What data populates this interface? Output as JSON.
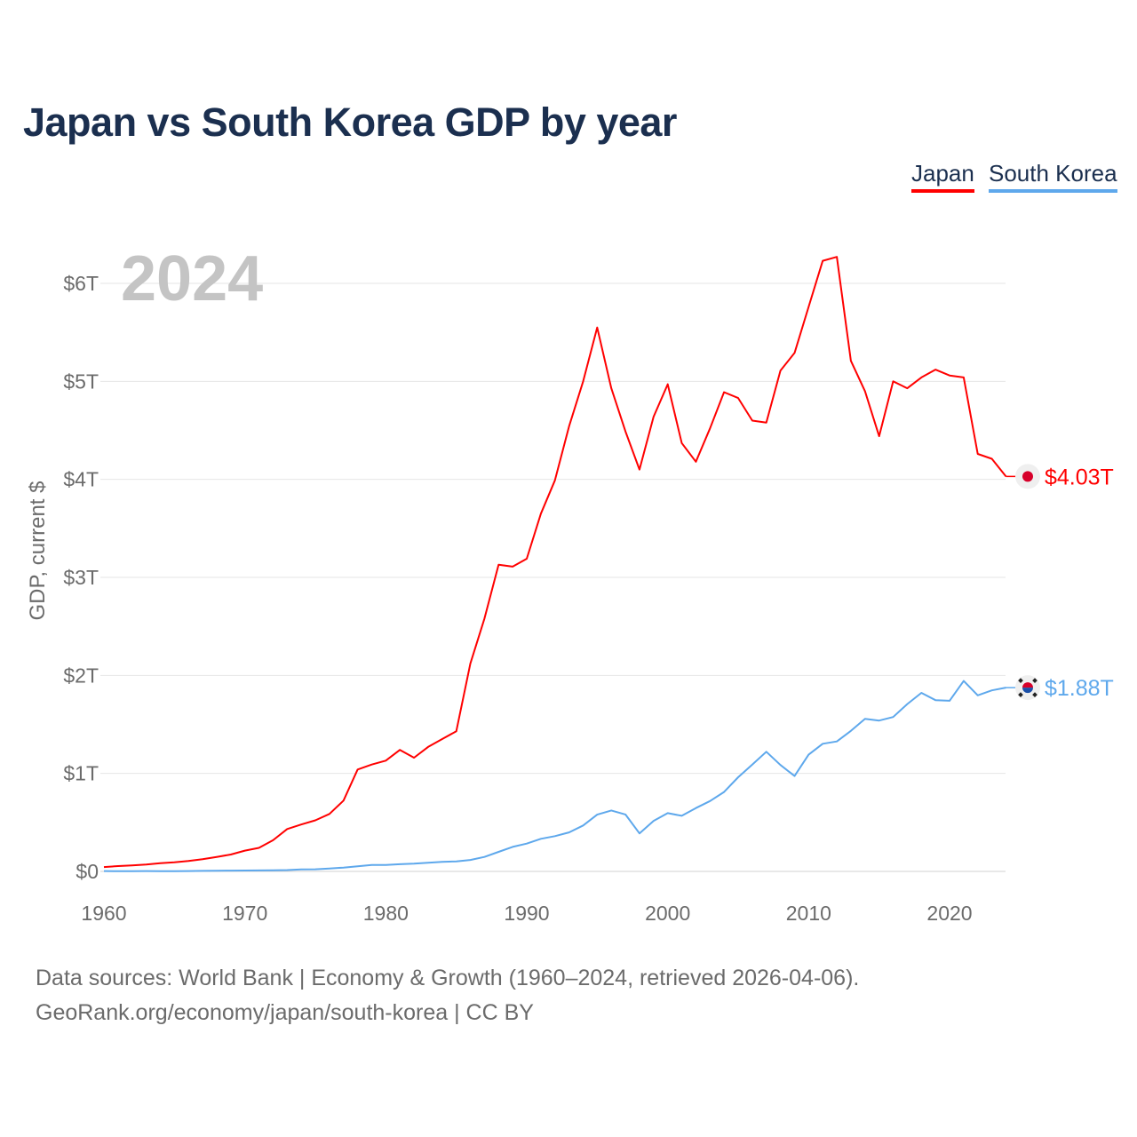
{
  "title": "Japan vs South Korea GDP by year",
  "legend": [
    {
      "label": "Japan",
      "color": "#ff0000"
    },
    {
      "label": "South Korea",
      "color": "#5ea8ec"
    }
  ],
  "year_watermark": "2024",
  "footer": {
    "line1": "Data sources: World Bank | Economy & Growth (1960–2024, retrieved 2026-04-06).",
    "line2": "GeoRank.org/economy/japan/south-korea | CC BY"
  },
  "chart_data": {
    "type": "line",
    "title": "Japan vs South Korea GDP by year",
    "xlabel": "",
    "ylabel": "GDP, current $",
    "xlim": [
      1960,
      2024
    ],
    "ylim": [
      0,
      6.5
    ],
    "y_unit": "trillion USD",
    "x_ticks": [
      "1960",
      "1970",
      "1980",
      "1990",
      "2000",
      "2010",
      "2020"
    ],
    "y_ticks": [
      "$0",
      "$1T",
      "$2T",
      "$3T",
      "$4T",
      "$5T",
      "$6T"
    ],
    "grid": true,
    "legend_position": "top-right",
    "x_start": 1960,
    "series": [
      {
        "name": "Japan",
        "color": "#ff0000",
        "end_label": "$4.03T",
        "values": [
          0.044,
          0.054,
          0.061,
          0.07,
          0.083,
          0.092,
          0.107,
          0.125,
          0.148,
          0.172,
          0.212,
          0.24,
          0.318,
          0.432,
          0.479,
          0.521,
          0.586,
          0.722,
          1.04,
          1.09,
          1.13,
          1.24,
          1.16,
          1.27,
          1.35,
          1.43,
          2.12,
          2.58,
          3.13,
          3.11,
          3.19,
          3.65,
          3.99,
          4.54,
          5.0,
          5.55,
          4.93,
          4.49,
          4.1,
          4.64,
          4.97,
          4.37,
          4.18,
          4.52,
          4.89,
          4.83,
          4.6,
          4.58,
          5.11,
          5.29,
          5.76,
          6.23,
          6.27,
          5.21,
          4.9,
          4.44,
          5.0,
          4.93,
          5.04,
          5.12,
          5.06,
          5.04,
          4.26,
          4.21,
          4.03
        ]
      },
      {
        "name": "South Korea",
        "color": "#5ea8ec",
        "end_label": "$1.88T",
        "values": [
          0.004,
          0.002,
          0.003,
          0.004,
          0.003,
          0.003,
          0.004,
          0.005,
          0.006,
          0.008,
          0.009,
          0.01,
          0.011,
          0.014,
          0.02,
          0.022,
          0.03,
          0.039,
          0.052,
          0.066,
          0.066,
          0.073,
          0.079,
          0.089,
          0.098,
          0.102,
          0.117,
          0.148,
          0.199,
          0.25,
          0.284,
          0.333,
          0.36,
          0.398,
          0.469,
          0.579,
          0.622,
          0.581,
          0.388,
          0.516,
          0.595,
          0.567,
          0.646,
          0.718,
          0.81,
          0.961,
          1.089,
          1.221,
          1.086,
          0.973,
          1.191,
          1.302,
          1.326,
          1.434,
          1.556,
          1.539,
          1.575,
          1.708,
          1.822,
          1.747,
          1.741,
          1.943,
          1.796,
          1.847,
          1.875
        ]
      }
    ]
  }
}
